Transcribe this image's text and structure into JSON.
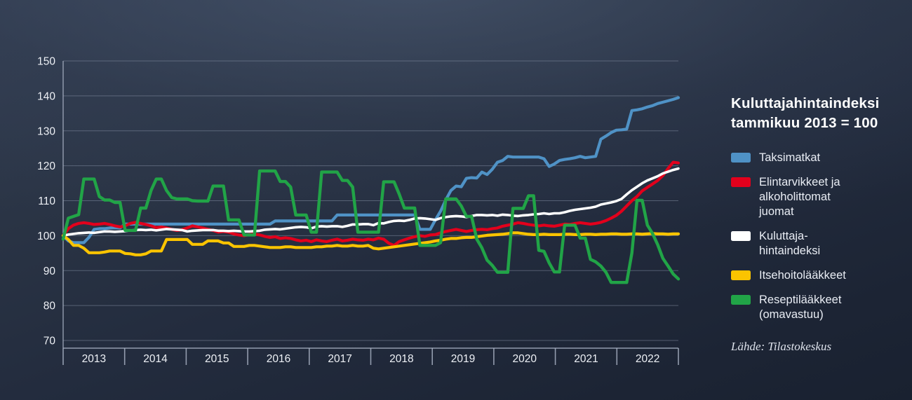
{
  "title": {
    "line1": "Kuluttajahintaindeksi",
    "line2": "tammikuu 2013 = 100"
  },
  "source": "Lähde: Tilastokeskus",
  "colors": {
    "background_top": "#333e52",
    "background_bottom": "#192130",
    "grid": "#8d97ab",
    "axis_text": "#eef1f6",
    "taksimatkat": "#4f92c6",
    "elintarvikkeet": "#e2001c",
    "kuluttajahintaindeksi": "#ffffff",
    "itsehoitolaakkeet": "#fbc400",
    "reseptilaakkeet": "#21a447"
  },
  "chart_data": {
    "type": "line",
    "title": "Kuluttajahintaindeksi tammikuu 2013 = 100",
    "xlabel": "",
    "ylabel": "",
    "ylim": [
      70,
      150
    ],
    "y_ticks": [
      150,
      140,
      130,
      120,
      110,
      100,
      90,
      80,
      70
    ],
    "x_tick_labels": [
      "2013",
      "2014",
      "2015",
      "2016",
      "2017",
      "2018",
      "2019",
      "2020",
      "2021",
      "2022"
    ],
    "x_unit": "month",
    "grid": true,
    "legend_position": "right",
    "series": [
      {
        "name": "Taksimatkat",
        "legend_lines": [
          "Taksimatkat"
        ],
        "color": "#4f92c6",
        "width": 4.2,
        "values": [
          100,
          98.5,
          98,
          98,
          98,
          99.5,
          101.8,
          102,
          102,
          102.2,
          102.2,
          102.2,
          103.3,
          103.3,
          103.3,
          103.3,
          103.3,
          103.3,
          103.3,
          103.3,
          103.3,
          103.3,
          103.3,
          103.3,
          103.3,
          103.3,
          103.3,
          103.3,
          103.3,
          103.3,
          103.3,
          103.3,
          103.3,
          103.3,
          103.3,
          103.3,
          103.3,
          103.3,
          103.3,
          103.3,
          103.3,
          104.2,
          104.2,
          104.2,
          104.2,
          104.2,
          104.2,
          104.2,
          104.2,
          104.2,
          104.2,
          104.2,
          104.2,
          105.9,
          105.9,
          105.9,
          105.9,
          105.9,
          105.9,
          105.9,
          105.9,
          105.9,
          105.9,
          105.9,
          105.9,
          105.9,
          105.9,
          105.9,
          105.9,
          101.8,
          101.8,
          101.8,
          104.5,
          107,
          110.2,
          112.9,
          114.2,
          114,
          116.4,
          116.6,
          116.5,
          118.2,
          117.5,
          119,
          121,
          121.5,
          122.7,
          122.5,
          122.5,
          122.5,
          122.5,
          122.5,
          122.5,
          122,
          119.8,
          120.5,
          121.5,
          121.8,
          122,
          122.3,
          122.7,
          122.3,
          122.5,
          122.7,
          127.6,
          128.5,
          129.5,
          130.2,
          130.3,
          130.5,
          135.8,
          136,
          136.3,
          136.8,
          137.2,
          137.8,
          138.2,
          138.6,
          139,
          139.5
        ]
      },
      {
        "name": "Elintarvikkeet ja alkoholittomat juomat",
        "legend_lines": [
          "Elintarvikkeet ja",
          "alkoholittomat",
          "juomat"
        ],
        "color": "#e2001c",
        "width": 4.2,
        "values": [
          100,
          102,
          103,
          103.5,
          103.7,
          103.5,
          103.2,
          103.3,
          103.5,
          103.2,
          102.8,
          102.5,
          102.8,
          103.5,
          103.8,
          103.5,
          103.2,
          102.8,
          102.3,
          102.5,
          102.2,
          101.8,
          101.5,
          101.7,
          102.2,
          102.8,
          102.5,
          102.2,
          101.8,
          101.5,
          101,
          101.2,
          101,
          100.5,
          100.2,
          100,
          100.3,
          100.5,
          100.2,
          99.8,
          99.5,
          99.7,
          99.2,
          99.4,
          99.2,
          98.8,
          98.5,
          98.7,
          98.3,
          98.8,
          98.5,
          98.3,
          98.7,
          99,
          98.5,
          98.7,
          99,
          98.8,
          98.7,
          99,
          98.8,
          99.3,
          99,
          97.8,
          97.2,
          98.3,
          98.8,
          99.3,
          99.7,
          100,
          99.8,
          100.2,
          100.3,
          100.8,
          101.2,
          101.5,
          101.8,
          101.5,
          101.2,
          101.5,
          101.7,
          101.8,
          101.7,
          102,
          102.2,
          102.7,
          103,
          103.3,
          103.7,
          103.5,
          103.2,
          103,
          102.8,
          103,
          102.8,
          102.7,
          103,
          103.3,
          103.2,
          103.5,
          103.7,
          103.5,
          103.3,
          103.5,
          103.8,
          104.3,
          105,
          105.8,
          107,
          108.5,
          110,
          111.2,
          112.8,
          113.8,
          114.8,
          115.8,
          117.2,
          119.2,
          121,
          120.8
        ]
      },
      {
        "name": "Kuluttajahintaindeksi",
        "legend_lines": [
          "Kuluttaja-",
          "hintaindeksi"
        ],
        "color": "#ffffff",
        "width": 3.6,
        "values": [
          100,
          100.3,
          100.5,
          100.7,
          100.8,
          100.9,
          100.8,
          101,
          101.2,
          101.2,
          101.1,
          101.2,
          101.3,
          101.5,
          101.6,
          101.7,
          101.6,
          101.7,
          101.5,
          101.7,
          101.9,
          101.8,
          101.7,
          101.6,
          101.2,
          101.4,
          101.5,
          101.6,
          101.6,
          101.6,
          101.4,
          101.4,
          101.3,
          101.4,
          101.3,
          101.2,
          101.2,
          101.3,
          101.4,
          101.7,
          101.8,
          101.9,
          101.8,
          102,
          102.2,
          102.4,
          102.5,
          102.4,
          102.1,
          102.6,
          102.7,
          102.6,
          102.7,
          102.7,
          102.5,
          102.8,
          103.2,
          103.2,
          103.3,
          103.3,
          103,
          103.6,
          103.5,
          103.9,
          104.2,
          104.3,
          104.2,
          104.5,
          104.9,
          105,
          104.9,
          104.7,
          104.5,
          105,
          105.3,
          105.5,
          105.6,
          105.5,
          105.3,
          105.6,
          105.9,
          105.9,
          105.8,
          105.9,
          105.7,
          106,
          105.9,
          105.7,
          105.6,
          105.8,
          105.9,
          106.1,
          106.2,
          106.4,
          106.2,
          106.4,
          106.4,
          106.7,
          107.1,
          107.4,
          107.6,
          107.8,
          108,
          108.3,
          108.9,
          109.2,
          109.5,
          109.9,
          110.5,
          111.8,
          113,
          114,
          115,
          115.8,
          116.4,
          117,
          117.8,
          118.3,
          118.8,
          119.2
        ]
      },
      {
        "name": "Itsehoitolääkkeet",
        "legend_lines": [
          "Itsehoitolääkkeet"
        ],
        "color": "#fbc400",
        "width": 4.2,
        "values": [
          100,
          98.9,
          97.2,
          97.2,
          96.4,
          95.1,
          95.1,
          95.1,
          95.3,
          95.6,
          95.6,
          95.6,
          94.9,
          94.8,
          94.5,
          94.5,
          94.8,
          95.6,
          95.6,
          95.6,
          98.9,
          98.9,
          98.9,
          98.9,
          98.9,
          97.5,
          97.5,
          97.5,
          98.5,
          98.5,
          98.5,
          97.9,
          97.9,
          96.9,
          96.9,
          96.9,
          97.2,
          97.2,
          97,
          96.8,
          96.6,
          96.6,
          96.6,
          96.8,
          96.8,
          96.6,
          96.6,
          96.6,
          96.6,
          96.8,
          96.8,
          97,
          97,
          97.2,
          97,
          97,
          97.2,
          97,
          97,
          97.2,
          96.4,
          96.2,
          96.4,
          96.6,
          96.8,
          97,
          97.2,
          97.4,
          97.6,
          97.8,
          98,
          98.2,
          98.5,
          98.7,
          99,
          99.2,
          99.2,
          99.4,
          99.5,
          99.5,
          99.7,
          99.9,
          100.1,
          100.2,
          100.3,
          100.4,
          100.6,
          100.8,
          100.8,
          100.6,
          100.4,
          100.3,
          100.3,
          100.4,
          100.3,
          100.3,
          100.3,
          100.4,
          100.4,
          100.3,
          100.3,
          100.4,
          100.4,
          100.3,
          100.4,
          100.4,
          100.5,
          100.5,
          100.4,
          100.4,
          100.5,
          100.5,
          100.4,
          100.5,
          100.6,
          100.5,
          100.5,
          100.4,
          100.5,
          100.5
        ]
      },
      {
        "name": "Reseptilääkkeet (omavastuu)",
        "legend_lines": [
          "Reseptilääkkeet",
          "(omavastuu)"
        ],
        "color": "#21a447",
        "width": 4.4,
        "values": [
          99,
          105,
          105.5,
          106,
          116.2,
          116.2,
          116.2,
          111.2,
          110.2,
          110.2,
          109.5,
          109.5,
          101.5,
          101.5,
          101.5,
          107.9,
          107.9,
          112.9,
          116.2,
          116.2,
          112.9,
          110.9,
          110.5,
          110.5,
          110.5,
          110,
          109.9,
          109.9,
          109.9,
          114.2,
          114.2,
          114.2,
          104.5,
          104.5,
          104.5,
          100.2,
          100.2,
          100.2,
          118.5,
          118.5,
          118.5,
          118.5,
          115.5,
          115.5,
          113.9,
          105.9,
          105.9,
          105.9,
          101,
          101,
          118.2,
          118.2,
          118.2,
          118.2,
          115.8,
          115.8,
          113.9,
          101,
          101,
          101,
          101,
          101,
          115.4,
          115.4,
          115.4,
          111.9,
          107.9,
          107.9,
          107.9,
          97.2,
          97.2,
          97.2,
          97.2,
          98,
          110.5,
          110.5,
          110.5,
          108.5,
          105.5,
          105.5,
          99,
          96.5,
          93,
          91.5,
          89.5,
          89.5,
          89.5,
          107.8,
          107.8,
          107.8,
          111.4,
          111.4,
          95.8,
          95.5,
          92.2,
          89.6,
          89.6,
          103,
          103,
          103,
          99.3,
          99.3,
          93.2,
          92.5,
          91.3,
          89.5,
          86.6,
          86.6,
          86.6,
          86.6,
          95,
          110.1,
          110.1,
          103,
          100.6,
          97.4,
          93.5,
          91.3,
          89,
          87.6
        ]
      }
    ]
  }
}
